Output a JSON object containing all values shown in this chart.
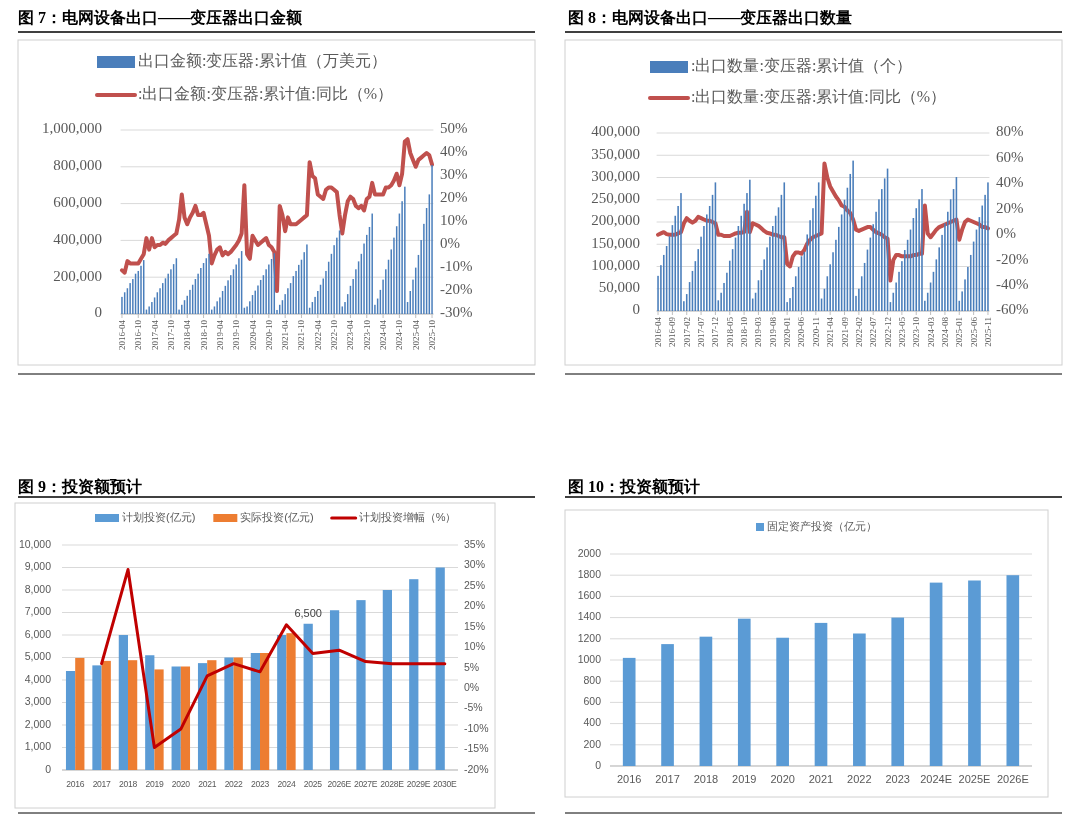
{
  "chart_data": [
    {
      "type": "bar",
      "title": "图 7：电网设备出口——变压器出口金额",
      "legend": "top",
      "grid": "y",
      "categories": [
        "2016-04",
        null,
        null,
        null,
        null,
        null,
        "2016-10",
        null,
        null,
        null,
        null,
        null,
        "2017-04",
        null,
        null,
        null,
        null,
        null,
        "2017-10",
        null,
        null,
        null,
        null,
        null,
        "2018-04",
        null,
        null,
        null,
        null,
        null,
        "2018-10",
        null,
        null,
        null,
        null,
        null,
        "2019-04",
        null,
        null,
        null,
        null,
        null,
        "2019-10",
        null,
        null,
        null,
        null,
        null,
        "2020-04",
        null,
        null,
        null,
        null,
        null,
        "2020-10",
        null,
        null,
        null,
        null,
        null,
        "2021-04",
        null,
        null,
        null,
        null,
        null,
        "2021-10",
        null,
        null,
        null,
        null,
        null,
        "2022-04",
        null,
        null,
        null,
        null,
        null,
        "2022-10",
        null,
        null,
        null,
        null,
        null,
        "2023-04",
        null,
        null,
        null,
        null,
        null,
        "2023-10",
        null,
        null,
        null,
        null,
        null,
        "2024-04",
        null,
        null,
        null,
        null,
        null,
        "2024-10",
        null,
        null,
        null,
        null,
        null,
        "2025-04",
        null,
        null,
        null,
        null,
        null,
        "2025-10"
      ],
      "ylim": [
        0,
        1000000
      ],
      "yticks": [
        0,
        {
          "value": 200000,
          "label": "200,000"
        },
        {
          "value": 400000,
          "label": "400,000"
        },
        {
          "value": 600000,
          "label": "600,000"
        },
        {
          "value": 800000,
          "label": "800,000"
        },
        {
          "value": 1000000,
          "label": "1,000,000"
        }
      ],
      "y2lim": [
        -30,
        50
      ],
      "y2ticks": [
        {
          "value": -30,
          "label": "-30%"
        },
        {
          "value": -20,
          "label": "-20%"
        },
        {
          "value": -10,
          "label": "-10%"
        },
        {
          "value": 0,
          "label": "0%"
        },
        {
          "value": 10,
          "label": "10%"
        },
        {
          "value": 20,
          "label": "20%"
        },
        {
          "value": 30,
          "label": "30%"
        },
        {
          "value": 40,
          "label": "40%"
        },
        {
          "value": 50,
          "label": "50%"
        }
      ],
      "series": [
        {
          "name": "出口金额:变压器:累计值（万美元）",
          "color": "#4a7ebb",
          "values": [
            93000,
            118000,
            140000,
            168000,
            190000,
            219000,
            234000,
            262000,
            293000,
            24000,
            41000,
            65000,
            90000,
            118000,
            140000,
            168000,
            194000,
            219000,
            243000,
            271000,
            303000,
            24000,
            50000,
            75000,
            99000,
            131000,
            159000,
            190000,
            219000,
            250000,
            277000,
            303000,
            327000,
            24000,
            41000,
            69000,
            90000,
            125000,
            153000,
            183000,
            211000,
            243000,
            269000,
            303000,
            342000,
            34000,
            41000,
            69000,
            103000,
            127000,
            155000,
            185000,
            211000,
            243000,
            269000,
            299000,
            330000,
            22000,
            50000,
            75000,
            108000,
            140000,
            168000,
            206000,
            234000,
            267000,
            295000,
            336000,
            378000,
            34000,
            65000,
            93000,
            125000,
            159000,
            193000,
            234000,
            284000,
            327000,
            374000,
            415000,
            454000,
            41000,
            65000,
            108000,
            153000,
            190000,
            243000,
            286000,
            327000,
            383000,
            430000,
            473000,
            546000,
            50000,
            84000,
            131000,
            187000,
            243000,
            295000,
            351000,
            415000,
            477000,
            546000,
            613000,
            692000,
            65000,
            125000,
            187000,
            252000,
            321000,
            402000,
            490000,
            576000,
            650000,
            810000
          ]
        },
        {
          "name": ":出口金额:变压器:累计值:同比（%）",
          "type": "line",
          "axis": "y2",
          "color": "#c0504d",
          "values": [
            -11,
            -12,
            -7,
            -8,
            -8,
            -8,
            -8,
            -6,
            -4,
            3,
            -2,
            3,
            -1,
            0,
            0,
            1,
            0.5,
            2,
            3,
            4,
            5,
            11,
            22,
            12,
            9,
            12,
            14,
            17,
            13,
            13,
            14,
            9,
            4,
            -8,
            -4.5,
            -2,
            -1,
            -4.5,
            -3,
            -4,
            -3,
            -1.5,
            0,
            2,
            5,
            26,
            -4,
            -6,
            4,
            2,
            0,
            1,
            2,
            3,
            0,
            -1,
            -3,
            -20,
            17,
            13,
            6,
            12,
            9,
            9,
            9,
            10,
            11,
            12,
            13,
            36,
            30,
            29,
            22,
            21,
            20,
            24,
            25,
            25,
            24,
            23,
            13,
            5,
            13,
            19,
            21,
            20,
            17,
            16,
            17,
            15,
            20,
            21,
            27,
            22,
            22,
            22,
            22,
            25,
            25,
            26,
            28,
            31,
            26,
            31,
            45,
            46,
            40,
            37,
            34,
            37,
            38,
            39,
            40,
            39,
            35
          ]
        }
      ]
    },
    {
      "type": "bar",
      "title": "图 8：电网设备出口——变压器出口数量",
      "legend": "top",
      "grid": "y",
      "categories": [
        "2016-04",
        null,
        null,
        null,
        null,
        "2016-09",
        null,
        null,
        null,
        null,
        "2017-02",
        null,
        null,
        null,
        null,
        "2017-07",
        null,
        null,
        null,
        null,
        "2017-12",
        null,
        null,
        null,
        null,
        "2018-05",
        null,
        null,
        null,
        null,
        "2018-10",
        null,
        null,
        null,
        null,
        "2019-03",
        null,
        null,
        null,
        null,
        "2019-08",
        null,
        null,
        null,
        null,
        "2020-01",
        null,
        null,
        null,
        null,
        "2020-06",
        null,
        null,
        null,
        null,
        "2020-11",
        null,
        null,
        null,
        null,
        "2021-04",
        null,
        null,
        null,
        null,
        "2021-09",
        null,
        null,
        null,
        null,
        "2022-02",
        null,
        null,
        null,
        null,
        "2022-07",
        null,
        null,
        null,
        null,
        "2022-12",
        null,
        null,
        null,
        null,
        "2023-05",
        null,
        null,
        null,
        null,
        "2023-10",
        null,
        null,
        null,
        null,
        "2024-03",
        null,
        null,
        null,
        null,
        "2024-08",
        null,
        null,
        null,
        null,
        "2025-01",
        null,
        null,
        null,
        null,
        "2025-06",
        null,
        null,
        null,
        null,
        "2025-11"
      ],
      "ylim": [
        0,
        400000
      ],
      "yticks": [
        0,
        {
          "value": 50000,
          "label": "50,000"
        },
        {
          "value": 100000,
          "label": "100,000"
        },
        {
          "value": 150000,
          "label": "150,000"
        },
        {
          "value": 200000,
          "label": "200,000"
        },
        {
          "value": 250000,
          "label": "250,000"
        },
        {
          "value": 300000,
          "label": "300,000"
        },
        {
          "value": 350000,
          "label": "350,000"
        },
        {
          "value": 400000,
          "label": "400,000"
        }
      ],
      "y2lim": [
        -60,
        80
      ],
      "y2ticks": [
        {
          "value": -60,
          "label": "-60%"
        },
        {
          "value": -40,
          "label": "-40%"
        },
        {
          "value": -20,
          "label": "-20%"
        },
        {
          "value": 0,
          "label": "0%"
        },
        {
          "value": 20,
          "label": "20%"
        },
        {
          "value": 40,
          "label": "40%"
        },
        {
          "value": 60,
          "label": "60%"
        },
        {
          "value": 80,
          "label": "80%"
        }
      ],
      "series": [
        {
          "name": ":出口数量:变压器:累计值（个）",
          "color": "#4a7ebb",
          "values": [
            79000,
            103000,
            126000,
            146000,
            168000,
            193000,
            214000,
            236000,
            265000,
            22000,
            38000,
            65000,
            90000,
            112000,
            139000,
            167000,
            191000,
            217000,
            236000,
            261000,
            289000,
            24000,
            41000,
            63000,
            86000,
            113000,
            139000,
            165000,
            191000,
            214000,
            241000,
            265000,
            295000,
            28000,
            41000,
            69000,
            92000,
            116000,
            143000,
            167000,
            191000,
            214000,
            233000,
            261000,
            289000,
            20000,
            29000,
            54000,
            78000,
            99000,
            123000,
            133000,
            172000,
            204000,
            231000,
            259000,
            289000,
            28000,
            50000,
            78000,
            105000,
            132000,
            160000,
            189000,
            217000,
            250000,
            277000,
            308000,
            338000,
            34000,
            50000,
            78000,
            108000,
            138000,
            165000,
            195000,
            223000,
            251000,
            274000,
            298000,
            320000,
            20000,
            41000,
            64000,
            88000,
            112000,
            137000,
            160000,
            183000,
            209000,
            231000,
            251000,
            274000,
            23000,
            41000,
            64000,
            88000,
            116000,
            143000,
            171000,
            197000,
            223000,
            251000,
            274000,
            301000,
            23000,
            44000,
            71000,
            99000,
            126000,
            156000,
            183000,
            211000,
            237000,
            261000,
            289000
          ]
        },
        {
          "name": ":出口数量:变压器:累计值:同比（%）",
          "type": "line",
          "axis": "y2",
          "color": "#c0504d",
          "values": [
            0,
            1,
            2,
            0.5,
            0,
            0,
            0,
            1,
            2,
            9,
            13,
            11,
            9.5,
            11,
            14,
            13,
            12,
            11,
            11,
            10,
            9,
            0,
            0,
            -1,
            -1,
            -1,
            0,
            1,
            1.5,
            1.5,
            2,
            18,
            2,
            9,
            8,
            7,
            5,
            3,
            1.5,
            1,
            0,
            0,
            -1,
            -2,
            -2,
            -23,
            -25,
            -17,
            -14,
            -14,
            -15,
            -12,
            -7,
            -4,
            -2,
            -1,
            0,
            1,
            56,
            45,
            38,
            34,
            30,
            27,
            23,
            22,
            19,
            17,
            12,
            4,
            3,
            4,
            5,
            6,
            6,
            4,
            2,
            1,
            0,
            -2,
            -3,
            -36,
            -20,
            -16,
            -16,
            -17,
            -17,
            -17,
            -17,
            -16,
            -16,
            -15,
            -15,
            23,
            1,
            -2,
            1,
            4,
            6,
            7,
            8,
            9,
            10,
            11,
            12,
            -4,
            4,
            10,
            12,
            11,
            10,
            9,
            8,
            6,
            6,
            5
          ]
        }
      ]
    },
    {
      "type": "bar",
      "title": "图 9：投资额预计",
      "legend": "top",
      "grid": "y",
      "categories": [
        "2016",
        "2017",
        "2018",
        "2019",
        "2020",
        "2021",
        "2022",
        "2023",
        "2024",
        "2025",
        "2026E",
        "2027E",
        "2028E",
        "2029E",
        "2030E"
      ],
      "ylim": [
        0,
        10000
      ],
      "yticks": [
        0,
        {
          "value": 1000,
          "label": "1,000"
        },
        {
          "value": 2000,
          "label": "2,000"
        },
        {
          "value": 3000,
          "label": "3,000"
        },
        {
          "value": 4000,
          "label": "4,000"
        },
        {
          "value": 5000,
          "label": "5,000"
        },
        {
          "value": 6000,
          "label": "6,000"
        },
        {
          "value": 7000,
          "label": "7,000"
        },
        {
          "value": 8000,
          "label": "8,000"
        },
        {
          "value": 9000,
          "label": "9,000"
        },
        {
          "value": 10000,
          "label": "10,000"
        }
      ],
      "y2lim": [
        -20,
        35
      ],
      "y2ticks": [
        {
          "value": -20,
          "label": "-20%"
        },
        {
          "value": -15,
          "label": "-15%"
        },
        {
          "value": -10,
          "label": "-10%"
        },
        {
          "value": -5,
          "label": "-5%"
        },
        {
          "value": 0,
          "label": "0%"
        },
        {
          "value": 5,
          "label": "5%"
        },
        {
          "value": 10,
          "label": "10%"
        },
        {
          "value": 15,
          "label": "15%"
        },
        {
          "value": 20,
          "label": "20%"
        },
        {
          "value": 25,
          "label": "25%"
        },
        {
          "value": 30,
          "label": "30%"
        },
        {
          "value": 35,
          "label": "35%"
        }
      ],
      "series": [
        {
          "name": "计划投资(亿元)",
          "color": "#5b9bd5",
          "values": [
            4400,
            4650,
            6000,
            5100,
            4600,
            4750,
            5000,
            5200,
            6000,
            6500,
            7100,
            7550,
            8000,
            8480,
            9000
          ],
          "value_labels": [
            null,
            null,
            null,
            null,
            null,
            null,
            null,
            null,
            null,
            "6,500",
            null,
            null,
            null,
            null,
            null
          ]
        },
        {
          "name": "实际投资(亿元)",
          "color": "#ed7d31",
          "values": [
            4980,
            4850,
            4880,
            4470,
            4600,
            4880,
            5000,
            5200,
            6080,
            null,
            null,
            null,
            null,
            null,
            null
          ]
        },
        {
          "name": "计划投资增幅（%）",
          "type": "line",
          "axis": "y2",
          "color": "#c00000",
          "values": [
            null,
            6,
            29,
            -14.5,
            -10,
            3,
            6,
            4,
            15.5,
            8.5,
            9.3,
            6.5,
            6,
            6,
            6
          ]
        }
      ]
    },
    {
      "type": "bar",
      "title": "图 10：投资额预计",
      "legend": "top",
      "grid": "y",
      "categories": [
        "2016",
        "2017",
        "2018",
        "2019",
        "2020",
        "2021",
        "2022",
        "2023",
        "2024E",
        "2025E",
        "2026E"
      ],
      "ylim": [
        0,
        2000
      ],
      "yticks": [
        0,
        200,
        400,
        600,
        800,
        1000,
        1200,
        1400,
        1600,
        1800,
        2000
      ],
      "series": [
        {
          "name": "固定资产投资（亿元）",
          "color": "#5b9bd5",
          "values": [
            1020,
            1150,
            1220,
            1390,
            1210,
            1350,
            1250,
            1400,
            1730,
            1750,
            1800
          ]
        }
      ]
    }
  ]
}
